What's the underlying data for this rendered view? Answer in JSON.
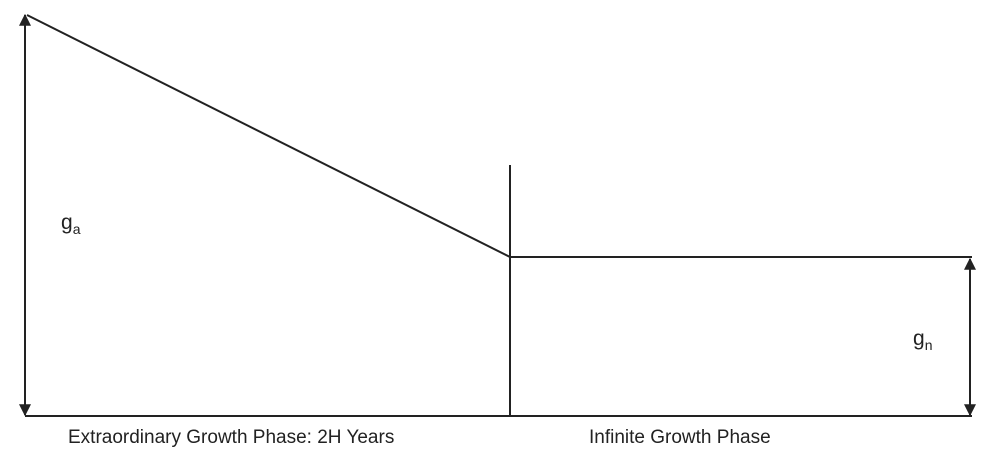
{
  "diagram": {
    "labels": {
      "ga_base": "g",
      "ga_sub": "a",
      "gn_base": "g",
      "gn_sub": "n",
      "phase1": "Extraordinary Growth Phase: 2H Years",
      "phase2": "Infinite Growth Phase"
    },
    "colors": {
      "stroke": "#222222",
      "background": "#ffffff"
    }
  }
}
